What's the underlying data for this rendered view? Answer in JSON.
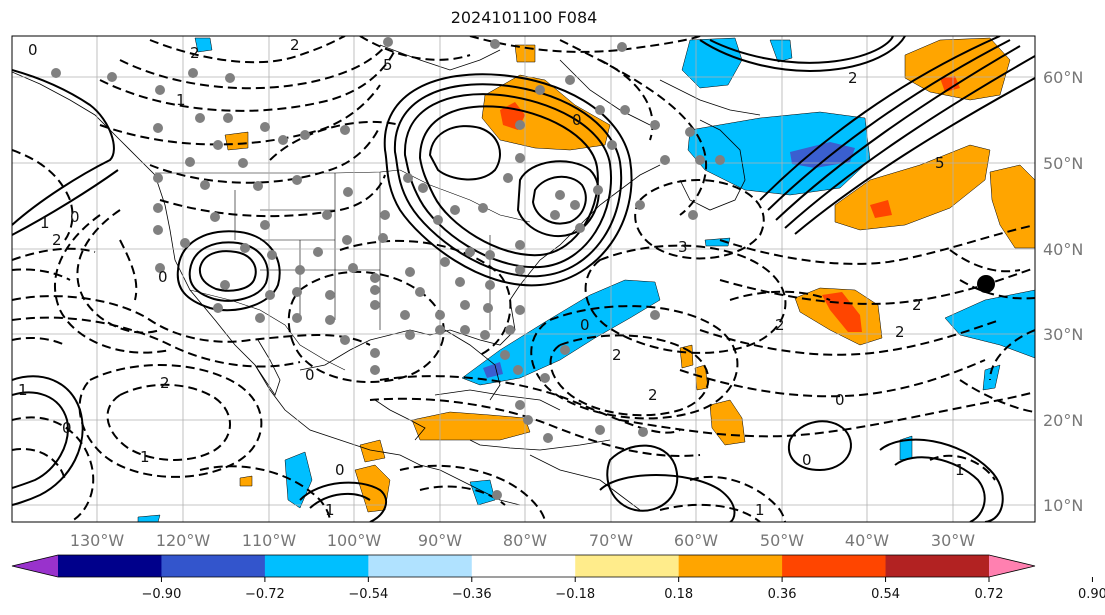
{
  "title": "2024101100 F084",
  "map": {
    "lon_labels": [
      "130°W",
      "120°W",
      "110°W",
      "100°W",
      "90°W",
      "80°W",
      "70°W",
      "60°W",
      "50°W",
      "40°W",
      "30°W"
    ],
    "lat_labels": [
      "60°N",
      "50°N",
      "40°N",
      "30°N",
      "20°N",
      "10°N"
    ],
    "contour_labels": [
      "0",
      "2",
      "1",
      "5",
      "2",
      "0",
      "2",
      "0",
      "1",
      "0",
      "0",
      "0",
      "1",
      "2",
      "0",
      "0",
      "1",
      "2",
      "2",
      "2",
      "2",
      "1",
      "0",
      "2",
      "5",
      "2",
      "1",
      "0",
      "1",
      "3"
    ]
  },
  "colorbar": {
    "ticks": [
      "−0.90",
      "−0.72",
      "−0.54",
      "−0.36",
      "−0.18",
      "0.18",
      "0.36",
      "0.54",
      "0.72",
      "0.90"
    ],
    "colors": [
      "#9932cc",
      "#00008b",
      "#3355cc",
      "#00bfff",
      "#b0e2ff",
      "#ffffff",
      "#ffec8b",
      "#ffa500",
      "#ff4500",
      "#b22222",
      "#ff80b0"
    ]
  },
  "colors": {
    "blue": "#00bfff",
    "deep_blue": "#3a5fd0",
    "orange": "#ffa500",
    "red": "#ff4500",
    "station": "#808080"
  }
}
